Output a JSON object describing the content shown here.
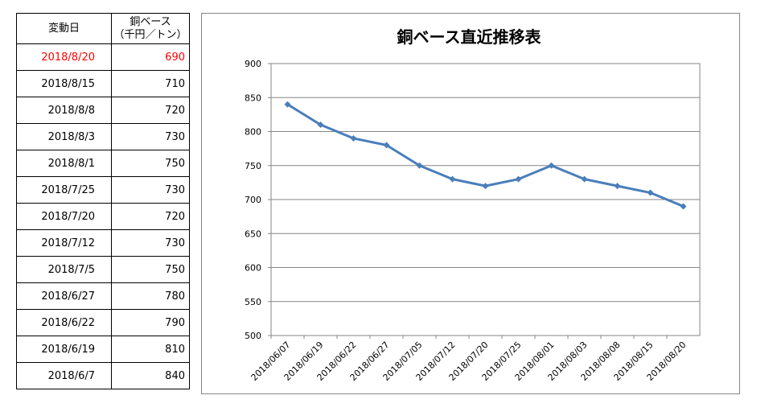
{
  "table": {
    "header": {
      "date": "変動日",
      "price_line1": "銅ベース",
      "price_line2": "（千円／トン）"
    },
    "rows": [
      {
        "date": "2018/8/20",
        "price": "690",
        "highlight": true
      },
      {
        "date": "2018/8/15",
        "price": "710"
      },
      {
        "date": "2018/8/8",
        "price": "720"
      },
      {
        "date": "2018/8/3",
        "price": "730"
      },
      {
        "date": "2018/8/1",
        "price": "750"
      },
      {
        "date": "2018/7/25",
        "price": "730"
      },
      {
        "date": "2018/7/20",
        "price": "720"
      },
      {
        "date": "2018/7/12",
        "price": "730"
      },
      {
        "date": "2018/7/5",
        "price": "750"
      },
      {
        "date": "2018/6/27",
        "price": "780"
      },
      {
        "date": "2018/6/22",
        "price": "790"
      },
      {
        "date": "2018/6/19",
        "price": "810"
      },
      {
        "date": "2018/6/7",
        "price": "840"
      }
    ],
    "highlight_color": "#ff0000"
  },
  "chart_data": {
    "type": "line",
    "title": "銅ベース直近推移表",
    "categories": [
      "2018/06/07",
      "2018/06/19",
      "2018/06/22",
      "2018/06/27",
      "2018/07/05",
      "2018/07/12",
      "2018/07/20",
      "2018/07/25",
      "2018/08/01",
      "2018/08/03",
      "2018/08/08",
      "2018/08/15",
      "2018/08/20"
    ],
    "series": [
      {
        "values": [
          840,
          810,
          790,
          780,
          750,
          730,
          720,
          730,
          750,
          730,
          720,
          710,
          690
        ],
        "color": "#4a7ebb",
        "marker": "diamond"
      }
    ],
    "ylim": [
      500,
      900
    ],
    "yticks": [
      500,
      550,
      600,
      650,
      700,
      750,
      800,
      850,
      900
    ],
    "grid": true,
    "legend": "none"
  }
}
